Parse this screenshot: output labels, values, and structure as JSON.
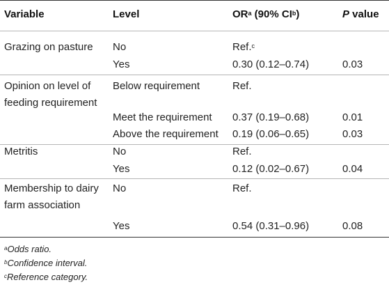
{
  "table": {
    "headers": {
      "variable": "Variable",
      "level": "Level",
      "or_main": "OR",
      "or_sup_a": "a",
      "or_paren": " (90% CI",
      "or_sup_b": "b",
      "or_close": ")",
      "p_italic": "P",
      "p_rest": " value"
    },
    "rows": [
      {
        "variable": "Grazing on pasture",
        "level": "No",
        "or": "Ref.",
        "or_sup": "c",
        "p": ""
      },
      {
        "variable": "",
        "level": "Yes",
        "or": "0.30 (0.12–0.74)",
        "or_sup": "",
        "p": "0.03"
      },
      {
        "variable": "Opinion on level of feeding requirement",
        "level": "Below requirement",
        "or": "Ref.",
        "or_sup": "",
        "p": ""
      },
      {
        "variable": "",
        "level": "Meet the requirement",
        "or": "0.37 (0.19–0.68)",
        "or_sup": "",
        "p": "0.01"
      },
      {
        "variable": "",
        "level": "Above the requirement",
        "or": "0.19 (0.06–0.65)",
        "or_sup": "",
        "p": "0.03"
      },
      {
        "variable": "Metritis",
        "level": "No",
        "or": "Ref.",
        "or_sup": "",
        "p": ""
      },
      {
        "variable": "",
        "level": "Yes",
        "or": "0.12 (0.02–0.67)",
        "or_sup": "",
        "p": "0.04"
      },
      {
        "variable": "Membership to dairy farm association",
        "level": "No",
        "or": "Ref.",
        "or_sup": "",
        "p": ""
      },
      {
        "variable": "",
        "level": "Yes",
        "or": "0.54 (0.31–0.96)",
        "or_sup": "",
        "p": "0.08"
      }
    ]
  },
  "footnotes": [
    {
      "mark": "a",
      "text": "Odds ratio."
    },
    {
      "mark": "b",
      "text": "Confidence interval."
    },
    {
      "mark": "c",
      "text": "Reference category."
    }
  ]
}
